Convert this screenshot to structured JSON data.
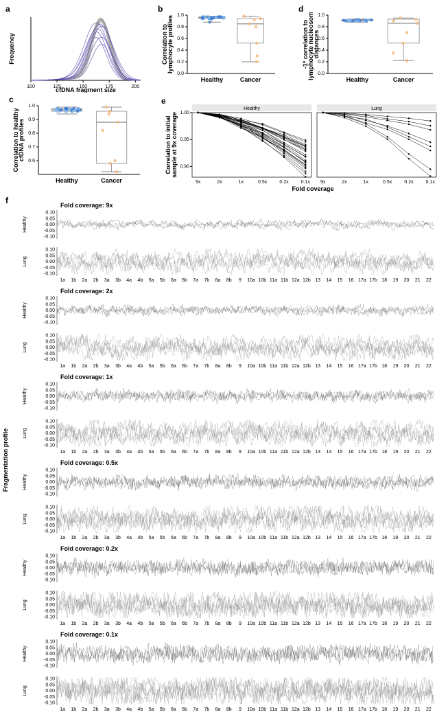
{
  "panels": {
    "a": {
      "label": "a",
      "x_label": "cfDNA fragment size",
      "y_label": "Frequency",
      "x_ticks": [
        100,
        125,
        150,
        175,
        200
      ],
      "line_colors_healthy": "#999999",
      "line_colors_cancer": "#6050b0",
      "n_healthy": 25,
      "n_cancer": 8
    },
    "b": {
      "label": "b",
      "y_label": "Correlation to\nlymphocyte profiles",
      "categories": [
        "Healthy",
        "Cancer"
      ],
      "y_ticks": [
        0.0,
        0.2,
        0.4,
        0.6,
        0.8,
        1.0
      ],
      "healthy_box": {
        "q1": 0.94,
        "med": 0.96,
        "q3": 0.97,
        "wlo": 0.88,
        "whi": 0.98
      },
      "cancer_box": {
        "q1": 0.52,
        "med": 0.85,
        "q3": 0.94,
        "wlo": 0.2,
        "whi": 0.98
      },
      "healthy_points": [
        0.97,
        0.96,
        0.95,
        0.97,
        0.96,
        0.94,
        0.97,
        0.95,
        0.96,
        0.88,
        0.97,
        0.96,
        0.95,
        0.94,
        0.97,
        0.96,
        0.95,
        0.97,
        0.96,
        0.94,
        0.97,
        0.95,
        0.96,
        0.97,
        0.96
      ],
      "cancer_points": [
        0.98,
        0.94,
        0.92,
        0.85,
        0.8,
        0.52,
        0.3,
        0.2
      ],
      "healthy_color": "#3b7fd6",
      "cancer_color": "#f5b87a",
      "light_blue": "#87b8e8"
    },
    "c": {
      "label": "c",
      "y_label": "Correlation to healthy\ncfDNA profiles",
      "categories": [
        "Healthy",
        "Cancer"
      ],
      "y_ticks": [
        0.6,
        0.7,
        0.8,
        0.9,
        1.0
      ],
      "healthy_box": {
        "q1": 0.96,
        "med": 0.97,
        "q3": 0.98,
        "wlo": 0.94,
        "whi": 0.99
      },
      "cancer_box": {
        "q1": 0.58,
        "med": 0.88,
        "q3": 0.96,
        "wlo": 0.52,
        "whi": 0.99
      },
      "healthy_points": [
        0.98,
        0.97,
        0.97,
        0.98,
        0.96,
        0.97,
        0.98,
        0.97,
        0.96,
        0.98,
        0.97,
        0.96,
        0.98,
        0.97,
        0.96,
        0.98,
        0.97,
        0.96,
        0.98,
        0.97,
        0.96,
        0.98,
        0.97,
        0.96,
        0.98
      ],
      "cancer_points": [
        0.99,
        0.96,
        0.94,
        0.88,
        0.82,
        0.6,
        0.58,
        0.52
      ],
      "healthy_color": "#3b7fd6",
      "cancer_color": "#f5b87a",
      "light_blue": "#87b8e8"
    },
    "d": {
      "label": "d",
      "y_label": "-1* correlation to\nlymphocyte nucleosome\ndistances",
      "categories": [
        "Healthy",
        "Cancer"
      ],
      "y_ticks": [
        0.0,
        0.2,
        0.4,
        0.6,
        0.8,
        1.0
      ],
      "healthy_box": {
        "q1": 0.9,
        "med": 0.91,
        "q3": 0.92,
        "wlo": 0.88,
        "whi": 0.93
      },
      "cancer_box": {
        "q1": 0.52,
        "med": 0.86,
        "q3": 0.93,
        "wlo": 0.22,
        "whi": 0.95
      },
      "healthy_points": [
        0.91,
        0.9,
        0.92,
        0.91,
        0.9,
        0.92,
        0.91,
        0.9,
        0.92,
        0.91,
        0.9,
        0.92,
        0.91,
        0.9,
        0.92,
        0.91,
        0.9,
        0.92,
        0.91,
        0.9,
        0.92,
        0.91,
        0.9,
        0.92,
        0.91
      ],
      "cancer_points": [
        0.95,
        0.93,
        0.9,
        0.86,
        0.7,
        0.52,
        0.35,
        0.22
      ],
      "healthy_color": "#3b7fd6",
      "cancer_color": "#f5b87a",
      "light_blue": "#87b8e8"
    },
    "e": {
      "label": "e",
      "y_label": "Correlation to initial\nsample at 9x coverage",
      "x_label": "Fold coverage",
      "facets": [
        "Healthy",
        "Lung"
      ],
      "x_ticks": [
        "9x",
        "2x",
        "1x",
        "0.5x",
        "0.2x",
        "0.1x"
      ],
      "y_ticks": [
        0.9,
        0.95,
        1.0
      ],
      "healthy_lines_n": 25,
      "lung_lines_n": 8,
      "line_color": "#000000"
    },
    "f": {
      "label": "f",
      "y_axis_label": "Fragmentation profile",
      "coverages": [
        "9x",
        "2x",
        "1x",
        "0.5x",
        "0.2x",
        "0.1x"
      ],
      "row_labels": [
        "Healthy",
        "Lung"
      ],
      "y_range": [
        -0.1,
        0.1
      ],
      "y_ticks": [
        -0.1,
        -0.05,
        0.0,
        0.05,
        0.1
      ],
      "chromosomes": [
        "1a",
        "1b",
        "2a",
        "2b",
        "3a",
        "3b",
        "4a",
        "4b",
        "5a",
        "5b",
        "6a",
        "6b",
        "7a",
        "7b",
        "8a",
        "8b",
        "9",
        "10a",
        "10b",
        "11a",
        "11b",
        "12a",
        "12b",
        "13",
        "14",
        "15",
        "16",
        "17a",
        "17b",
        "18",
        "19",
        "20",
        "21",
        "22"
      ],
      "healthy_color": "#555555",
      "lung_color": "#888888",
      "n_bins": 500,
      "coverage_label_prefix": "Fold coverage: "
    }
  },
  "colors": {
    "axis": "#000000",
    "grid": "#cccccc",
    "facet_bg": "#e8e8e8"
  }
}
